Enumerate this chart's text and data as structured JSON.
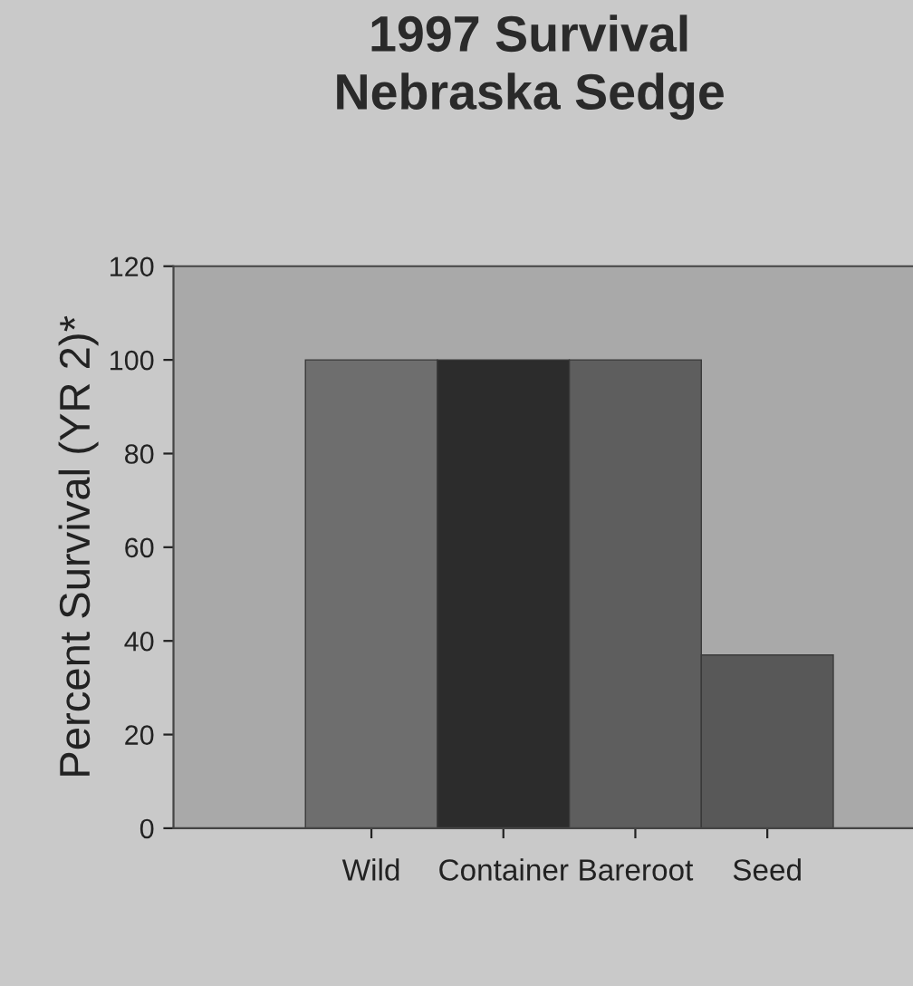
{
  "chart_data": {
    "type": "bar",
    "title": "1997 Survival\nNebraska Sedge",
    "ylabel": "Percent Survival (YR 2)*",
    "categories": [
      "Wild",
      "Container",
      "Bareroot",
      "Seed"
    ],
    "values": [
      100,
      100,
      100,
      37
    ],
    "colors": [
      "#6e6e6e",
      "#2c2c2c",
      "#5e5e5e",
      "#585858"
    ],
    "ylim": [
      0,
      120
    ],
    "yticks": [
      0,
      20,
      40,
      60,
      80,
      100,
      120
    ],
    "grid": false
  }
}
